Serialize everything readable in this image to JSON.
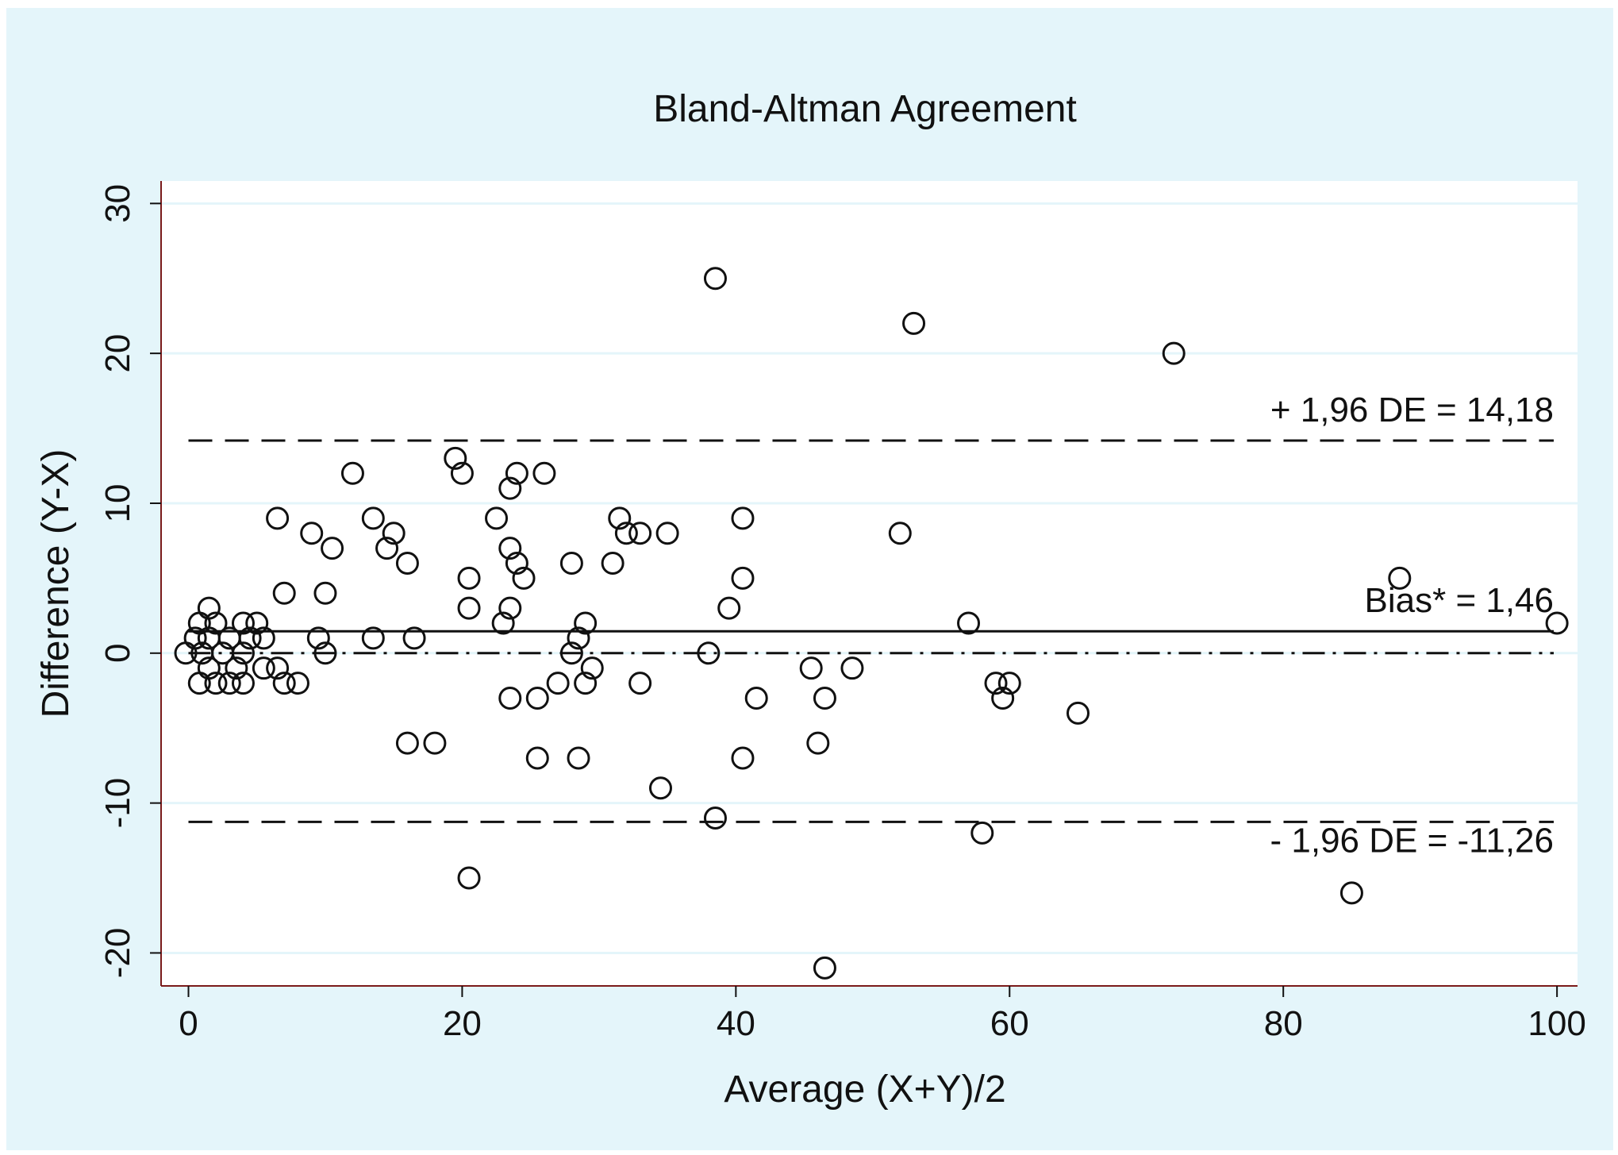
{
  "chart_data": {
    "type": "scatter",
    "title": "Bland-Altman Agreement",
    "xlabel": "Average (X+Y)/2",
    "ylabel": "Difference (Y-X)",
    "xlim": [
      -2,
      101.5
    ],
    "ylim": [
      -22.2,
      31.5
    ],
    "xticks": [
      0,
      20,
      40,
      60,
      80,
      100
    ],
    "yticks": [
      -20,
      -10,
      0,
      10,
      20,
      30
    ],
    "grid": true,
    "marker": "hollow-circle",
    "colors": {
      "background": "#e4f5fa",
      "plot": "#ffffff",
      "grid": "#e4f5fa",
      "axis": "#7a1a1a",
      "marks": "#111111"
    },
    "reference_lines": [
      {
        "label": "+ 1,96 DE = 14,18",
        "y": 14.18,
        "style": "dashed"
      },
      {
        "label": "Bias* = 1,46",
        "y": 1.46,
        "style": "solid"
      },
      {
        "label": "",
        "y": 0,
        "style": "dash-dot"
      },
      {
        "label": "- 1,96 DE = -11,26",
        "y": -11.26,
        "style": "dashed"
      }
    ],
    "points": [
      {
        "x": 38.5,
        "y": 25
      },
      {
        "x": 53,
        "y": 22
      },
      {
        "x": 72,
        "y": 20
      },
      {
        "x": 12,
        "y": 12
      },
      {
        "x": 19.5,
        "y": 13
      },
      {
        "x": 20,
        "y": 12
      },
      {
        "x": 24,
        "y": 12
      },
      {
        "x": 26,
        "y": 12
      },
      {
        "x": 23.5,
        "y": 11
      },
      {
        "x": 6.5,
        "y": 9
      },
      {
        "x": 13.5,
        "y": 9
      },
      {
        "x": 22.5,
        "y": 9
      },
      {
        "x": 31.5,
        "y": 9
      },
      {
        "x": 40.5,
        "y": 9
      },
      {
        "x": 9,
        "y": 8
      },
      {
        "x": 15,
        "y": 8
      },
      {
        "x": 32,
        "y": 8
      },
      {
        "x": 33,
        "y": 8
      },
      {
        "x": 35,
        "y": 8
      },
      {
        "x": 52,
        "y": 8
      },
      {
        "x": 10.5,
        "y": 7
      },
      {
        "x": 14.5,
        "y": 7
      },
      {
        "x": 23.5,
        "y": 7
      },
      {
        "x": 16,
        "y": 6
      },
      {
        "x": 24,
        "y": 6
      },
      {
        "x": 28,
        "y": 6
      },
      {
        "x": 31,
        "y": 6
      },
      {
        "x": 20.5,
        "y": 5
      },
      {
        "x": 24.5,
        "y": 5
      },
      {
        "x": 40.5,
        "y": 5
      },
      {
        "x": 88.5,
        "y": 5
      },
      {
        "x": 7,
        "y": 4
      },
      {
        "x": 10,
        "y": 4
      },
      {
        "x": 1.5,
        "y": 3
      },
      {
        "x": 20.5,
        "y": 3
      },
      {
        "x": 23.5,
        "y": 3
      },
      {
        "x": 39.5,
        "y": 3
      },
      {
        "x": 0.8,
        "y": 2
      },
      {
        "x": 2,
        "y": 2
      },
      {
        "x": 4,
        "y": 2
      },
      {
        "x": 5,
        "y": 2
      },
      {
        "x": 23,
        "y": 2
      },
      {
        "x": 29,
        "y": 2
      },
      {
        "x": 57,
        "y": 2
      },
      {
        "x": 100,
        "y": 2
      },
      {
        "x": 0.5,
        "y": 1
      },
      {
        "x": 1.5,
        "y": 1
      },
      {
        "x": 3,
        "y": 1
      },
      {
        "x": 4.5,
        "y": 1
      },
      {
        "x": 5.5,
        "y": 1
      },
      {
        "x": 9.5,
        "y": 1
      },
      {
        "x": 13.5,
        "y": 1
      },
      {
        "x": 16.5,
        "y": 1
      },
      {
        "x": 28.5,
        "y": 1
      },
      {
        "x": -0.2,
        "y": 0
      },
      {
        "x": 1,
        "y": 0
      },
      {
        "x": 2.5,
        "y": 0
      },
      {
        "x": 4,
        "y": 0
      },
      {
        "x": 10,
        "y": 0
      },
      {
        "x": 28,
        "y": 0
      },
      {
        "x": 38,
        "y": 0
      },
      {
        "x": 1.5,
        "y": -1
      },
      {
        "x": 3.5,
        "y": -1
      },
      {
        "x": 5.5,
        "y": -1
      },
      {
        "x": 6.5,
        "y": -1
      },
      {
        "x": 29.5,
        "y": -1
      },
      {
        "x": 45.5,
        "y": -1
      },
      {
        "x": 48.5,
        "y": -1
      },
      {
        "x": 0.8,
        "y": -2
      },
      {
        "x": 2,
        "y": -2
      },
      {
        "x": 3,
        "y": -2
      },
      {
        "x": 4,
        "y": -2
      },
      {
        "x": 7,
        "y": -2
      },
      {
        "x": 8,
        "y": -2
      },
      {
        "x": 27,
        "y": -2
      },
      {
        "x": 29,
        "y": -2
      },
      {
        "x": 33,
        "y": -2
      },
      {
        "x": 59,
        "y": -2
      },
      {
        "x": 60,
        "y": -2
      },
      {
        "x": 23.5,
        "y": -3
      },
      {
        "x": 25.5,
        "y": -3
      },
      {
        "x": 41.5,
        "y": -3
      },
      {
        "x": 46.5,
        "y": -3
      },
      {
        "x": 59.5,
        "y": -3
      },
      {
        "x": 65,
        "y": -4
      },
      {
        "x": 16,
        "y": -6
      },
      {
        "x": 18,
        "y": -6
      },
      {
        "x": 46,
        "y": -6
      },
      {
        "x": 25.5,
        "y": -7
      },
      {
        "x": 28.5,
        "y": -7
      },
      {
        "x": 40.5,
        "y": -7
      },
      {
        "x": 34.5,
        "y": -9
      },
      {
        "x": 38.5,
        "y": -11
      },
      {
        "x": 58,
        "y": -12
      },
      {
        "x": 20.5,
        "y": -15
      },
      {
        "x": 85,
        "y": -16
      },
      {
        "x": 46.5,
        "y": -21
      }
    ]
  }
}
